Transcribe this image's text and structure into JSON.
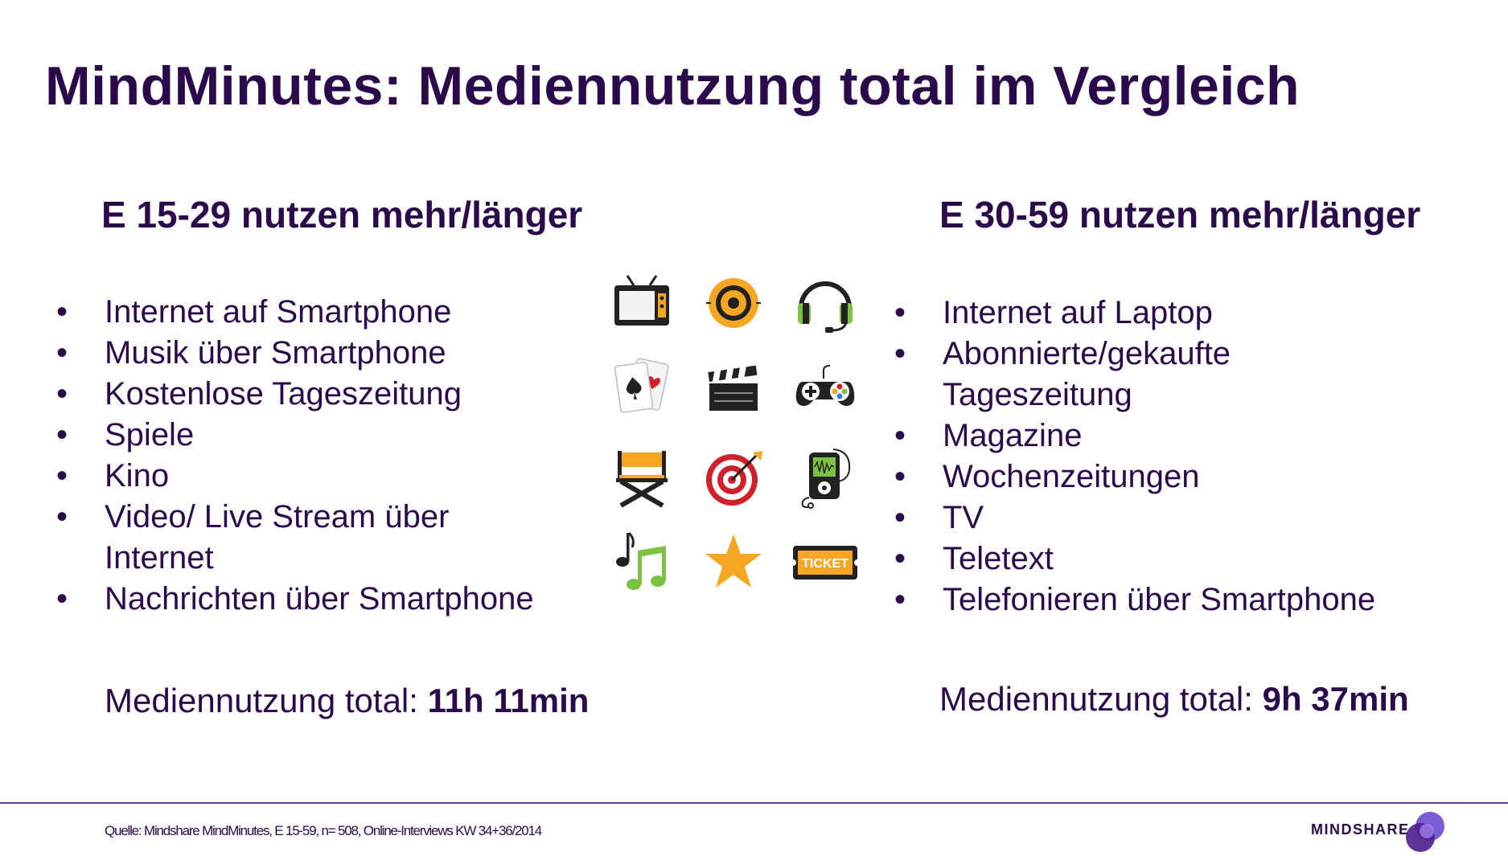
{
  "slide": {
    "title": "MindMinutes: Mediennutzung total im Vergleich",
    "left": {
      "heading": "E 15-29 nutzen mehr/länger",
      "items": [
        "Internet auf Smartphone",
        "Musik über Smartphone",
        "Kostenlose Tageszeitung",
        "Spiele",
        "Kino",
        "Video/ Live Stream über Internet",
        "Nachrichten über Smartphone"
      ],
      "total_label": "Mediennutzung total: ",
      "total_value": "11h 11min"
    },
    "right": {
      "heading": "E 30-59 nutzen mehr/länger",
      "items": [
        "Internet auf Laptop",
        "Abonnierte/gekaufte Tageszeitung",
        "Magazine",
        "Wochenzeitungen",
        "TV",
        "Teletext",
        "Telefonieren über Smartphone"
      ],
      "total_label": "Mediennutzung total: ",
      "total_value": "9h 37min"
    },
    "icons": [
      "tv-icon",
      "speaker-icon",
      "headphones-icon",
      "playing-cards-icon",
      "clapperboard-icon",
      "gamepad-icon",
      "director-chair-icon",
      "target-icon",
      "music-player-icon",
      "music-notes-icon",
      "star-icon",
      "ticket-icon"
    ],
    "ticket_text": "TICKET",
    "footer": {
      "source": "Quelle: Mindshare MindMinutes, E 15-59, n= 508, Online-Interviews KW 34+36/2014",
      "brand": "MINDSHARE"
    },
    "colors": {
      "primary_text": "#2a0a4a",
      "accent_orange": "#f5a623",
      "accent_green": "#7cc243",
      "accent_red": "#d0202a",
      "footer_line": "#6a3a9a"
    }
  }
}
